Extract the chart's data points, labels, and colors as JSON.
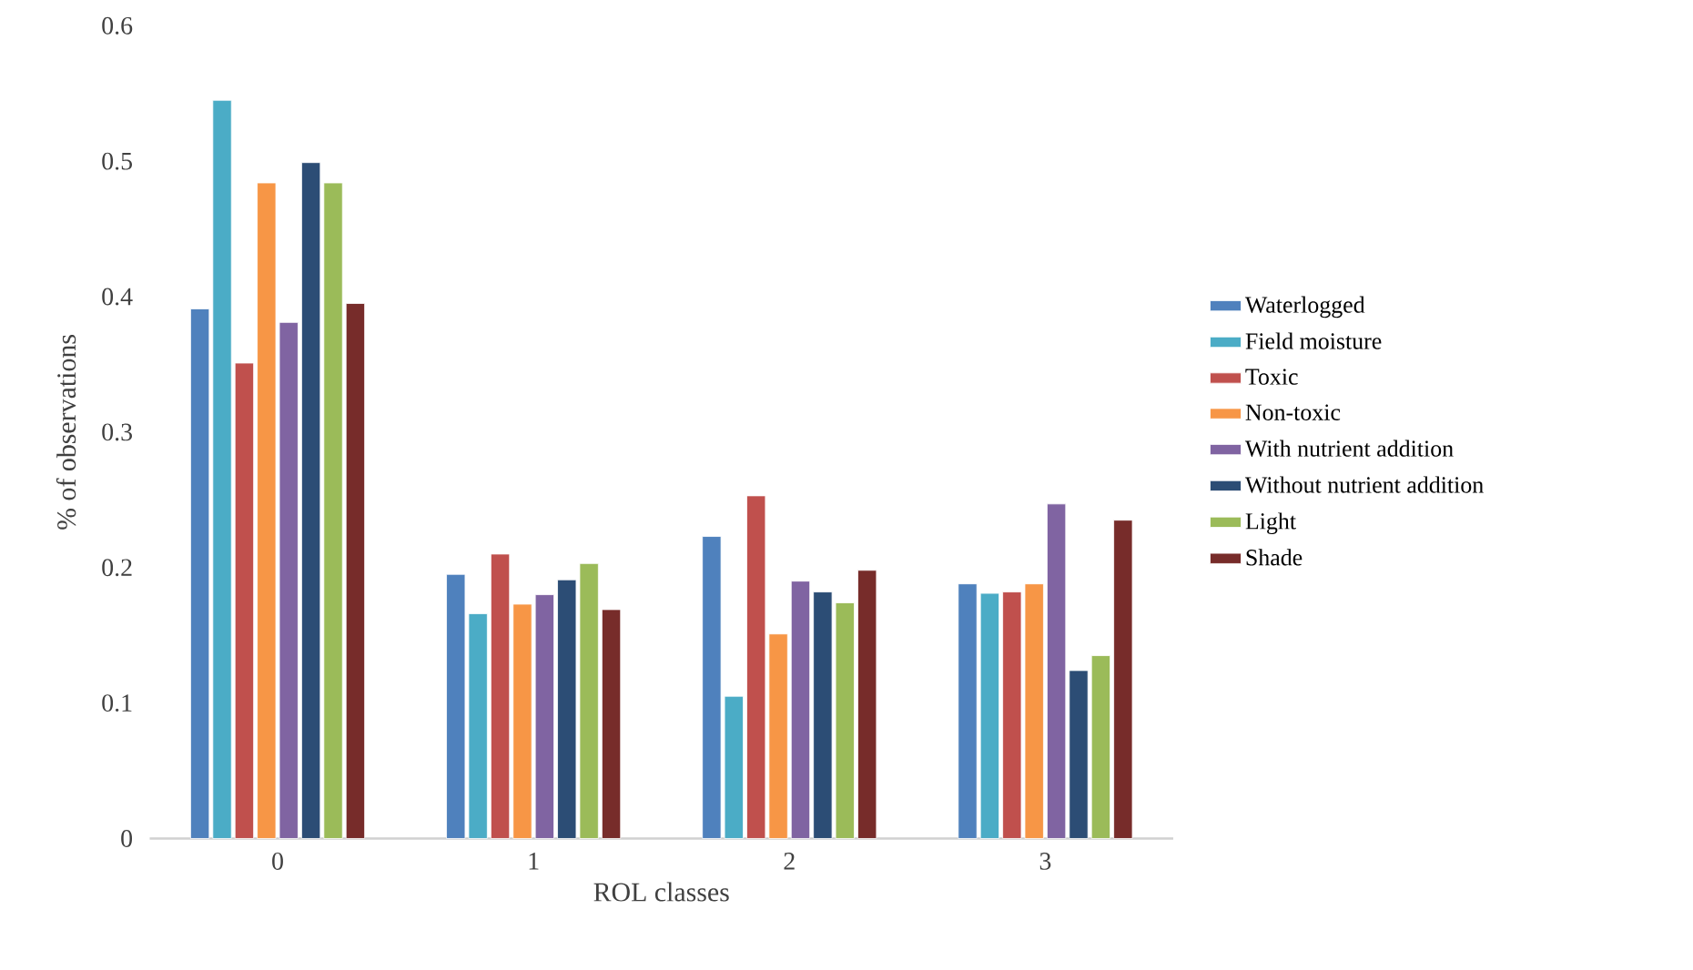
{
  "chart_data": {
    "type": "bar",
    "xlabel": "ROL classes",
    "ylabel": "% of observations",
    "categories": [
      "0",
      "1",
      "2",
      "3"
    ],
    "ylim": [
      0,
      0.6
    ],
    "yticks": [
      0,
      0.1,
      0.2,
      0.3,
      0.4,
      0.5,
      0.6
    ],
    "legend": "right",
    "series": [
      {
        "name": "Waterlogged",
        "color": "#4f81bd",
        "values": [
          0.391,
          0.195,
          0.223,
          0.188
        ]
      },
      {
        "name": "Field moisture",
        "color": "#4bacc6",
        "values": [
          0.545,
          0.166,
          0.105,
          0.181
        ]
      },
      {
        "name": "Toxic",
        "color": "#c0504d",
        "values": [
          0.351,
          0.21,
          0.253,
          0.182
        ]
      },
      {
        "name": "Non-toxic",
        "color": "#f79646",
        "values": [
          0.484,
          0.173,
          0.151,
          0.188
        ]
      },
      {
        "name": "With nutrient addition",
        "color": "#8064a2",
        "values": [
          0.381,
          0.18,
          0.19,
          0.247
        ]
      },
      {
        "name": "Without nutrient addition",
        "color": "#2c4d75",
        "values": [
          0.499,
          0.191,
          0.182,
          0.124
        ]
      },
      {
        "name": "Light",
        "color": "#9bbb59",
        "values": [
          0.484,
          0.203,
          0.174,
          0.135
        ]
      },
      {
        "name": "Shade",
        "color": "#772c2a",
        "values": [
          0.395,
          0.169,
          0.198,
          0.235
        ]
      }
    ]
  }
}
